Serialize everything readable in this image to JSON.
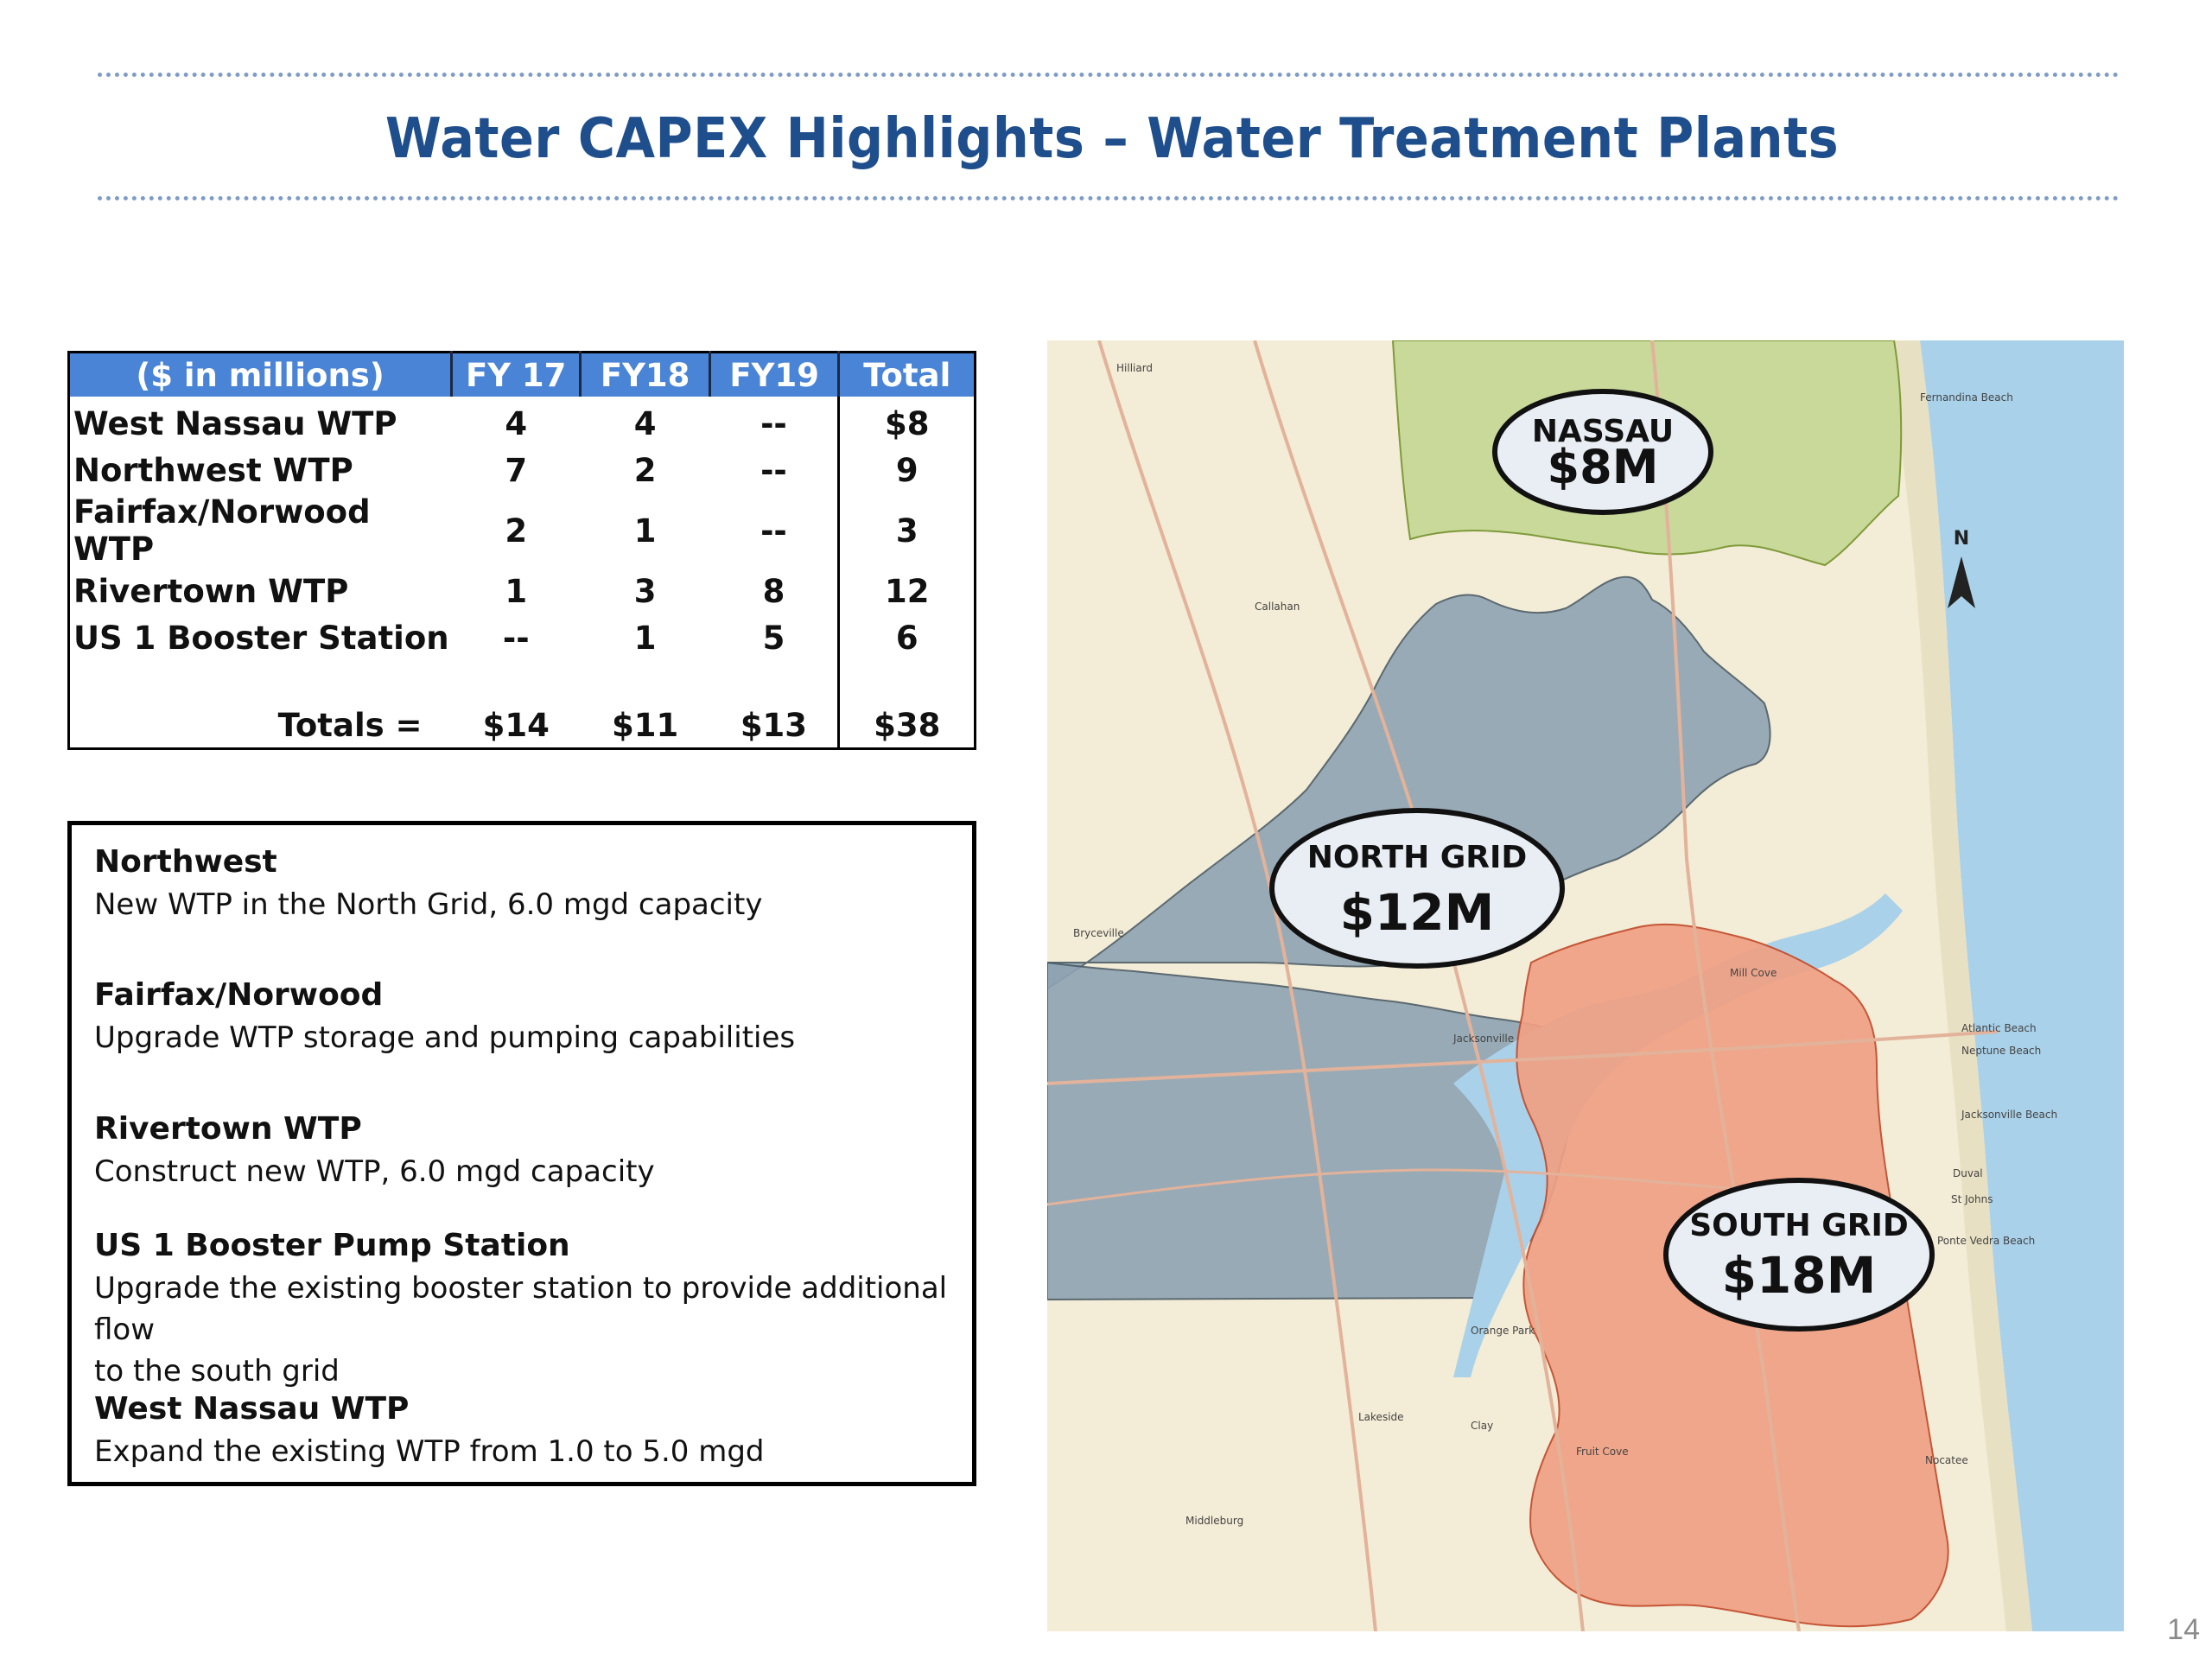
{
  "title": "Water CAPEX Highlights – Water Treatment Plants",
  "table": {
    "headers": [
      "($ in millions)",
      "FY 17",
      "FY18",
      "FY19",
      "Total"
    ],
    "rows": [
      {
        "name": "West Nassau WTP",
        "fy17": "4",
        "fy18": "4",
        "fy19": "--",
        "total": "$8"
      },
      {
        "name": "Northwest WTP",
        "fy17": "7",
        "fy18": "2",
        "fy19": "--",
        "total": "9"
      },
      {
        "name": "Fairfax/Norwood WTP",
        "fy17": "2",
        "fy18": "1",
        "fy19": "--",
        "total": "3"
      },
      {
        "name": "Rivertown WTP",
        "fy17": "1",
        "fy18": "3",
        "fy19": "8",
        "total": "12"
      },
      {
        "name": "US 1 Booster Station",
        "fy17": "--",
        "fy18": "1",
        "fy19": "5",
        "total": "6"
      }
    ],
    "totals": {
      "label": "Totals =",
      "fy17": "$14",
      "fy18": "$11",
      "fy19": "$13",
      "total": "$38"
    }
  },
  "descriptions": [
    {
      "heading": "Northwest",
      "lines": [
        "New WTP in the North Grid, 6.0 mgd capacity"
      ]
    },
    {
      "heading": "Fairfax/Norwood",
      "lines": [
        "Upgrade WTP storage and pumping capabilities"
      ]
    },
    {
      "heading": "Rivertown WTP",
      "lines": [
        "Construct new WTP, 6.0 mgd capacity"
      ]
    },
    {
      "heading": "US 1 Booster Pump Station",
      "lines": [
        "Upgrade the existing booster station to provide additional flow",
        "to the south grid"
      ]
    },
    {
      "heading": "West Nassau WTP",
      "lines": [
        "Expand the existing WTP from 1.0 to 5.0 mgd"
      ]
    }
  ],
  "map": {
    "north_label": "N",
    "bubbles": {
      "nassau": {
        "name": "NASSAU",
        "amount": "$8M"
      },
      "north": {
        "name": "NORTH GRID",
        "amount": "$12M"
      },
      "south": {
        "name": "SOUTH GRID",
        "amount": "$18M"
      }
    },
    "places": [
      "Hilliard",
      "Fernandina Beach",
      "Callahan",
      "Bryceville",
      "Jacksonville",
      "Atlantic Beach",
      "Neptune Beach",
      "Jacksonville Beach",
      "Duval",
      "St Johns",
      "Ponte Vedra Beach",
      "Orange Park",
      "Lakeside",
      "Clay",
      "Fruit Cove",
      "Nocatee",
      "Middleburg",
      "Mill Cove"
    ],
    "colors": {
      "nassau": "#c9d99a",
      "north": "#8fa3b3",
      "south": "#f0a184",
      "water": "#a9d1ea",
      "land": "#f3ecd6"
    }
  },
  "page_number": "14"
}
